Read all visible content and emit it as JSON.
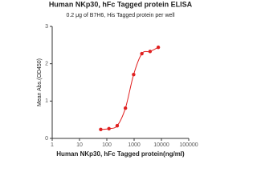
{
  "chart_data": {
    "type": "line",
    "title": "Human NKp30, hFc Tagged protein ELISA",
    "subtitle": "0.2 μg of B7H6, His Tagged protein per well",
    "x_label": "Human NKp30, hFc Tagged protein(ng/ml)",
    "y_label": "Mean Abs.(OD450)",
    "x": [
      60,
      120,
      240,
      480,
      960,
      1920,
      3840,
      7680
    ],
    "series": [
      {
        "name": "Mean Abs.(OD450)",
        "color": "#e02020",
        "values": [
          0.24,
          0.26,
          0.34,
          0.81,
          1.71,
          2.27,
          2.33,
          2.44
        ]
      }
    ],
    "x_log": true,
    "xlim": [
      1,
      100000
    ],
    "xticks": [
      1,
      10,
      100,
      1000,
      10000,
      100000
    ],
    "ylim": [
      0,
      3
    ],
    "yticks": [
      0,
      1,
      2,
      3
    ]
  }
}
